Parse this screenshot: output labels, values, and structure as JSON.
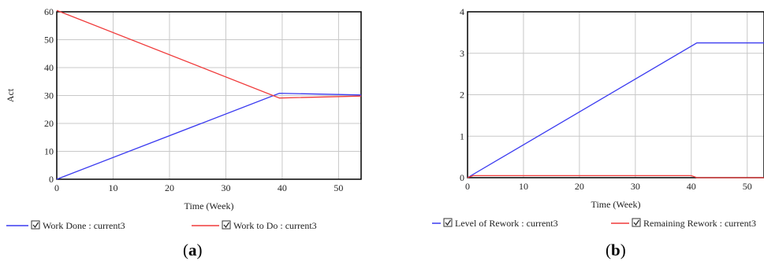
{
  "colors": {
    "blue": "#3a3af0",
    "red": "#f03a3a",
    "grid": "#c8c8c8",
    "frame": "#000000"
  },
  "chart_data": [
    {
      "type": "line",
      "caption_label": "a",
      "xlabel": "Time (Week)",
      "ylabel": "Act",
      "xlim": [
        0,
        54
      ],
      "ylim": [
        0,
        60
      ],
      "xticks": [
        0,
        10,
        20,
        30,
        40,
        50
      ],
      "yticks": [
        0,
        10,
        20,
        30,
        40,
        50,
        60
      ],
      "grid": true,
      "legend_position": "bottom",
      "series": [
        {
          "name": "Work Done : current3",
          "color": "#3a3af0",
          "x": [
            0,
            39.5,
            54
          ],
          "y": [
            0,
            30.8,
            30.2
          ]
        },
        {
          "name": "Work to Do : current3",
          "color": "#f03a3a",
          "x": [
            0,
            39.5,
            54
          ],
          "y": [
            60.5,
            29.1,
            29.8
          ]
        }
      ]
    },
    {
      "type": "line",
      "caption_label": "b",
      "xlabel": "Time (Week)",
      "ylabel": "",
      "xlim": [
        0,
        53
      ],
      "ylim": [
        0,
        4
      ],
      "xticks": [
        0,
        10,
        20,
        30,
        40,
        50
      ],
      "yticks": [
        0,
        1,
        2,
        3,
        4
      ],
      "grid": true,
      "legend_position": "bottom",
      "series": [
        {
          "name": "Level of Rework : current3",
          "color": "#3a3af0",
          "x": [
            0,
            41,
            53
          ],
          "y": [
            0,
            3.25,
            3.25
          ]
        },
        {
          "name": "Remaining Rework : current3",
          "color": "#f03a3a",
          "x": [
            0,
            1,
            40,
            41,
            53
          ],
          "y": [
            0,
            0.05,
            0.05,
            0,
            0
          ]
        }
      ]
    }
  ]
}
